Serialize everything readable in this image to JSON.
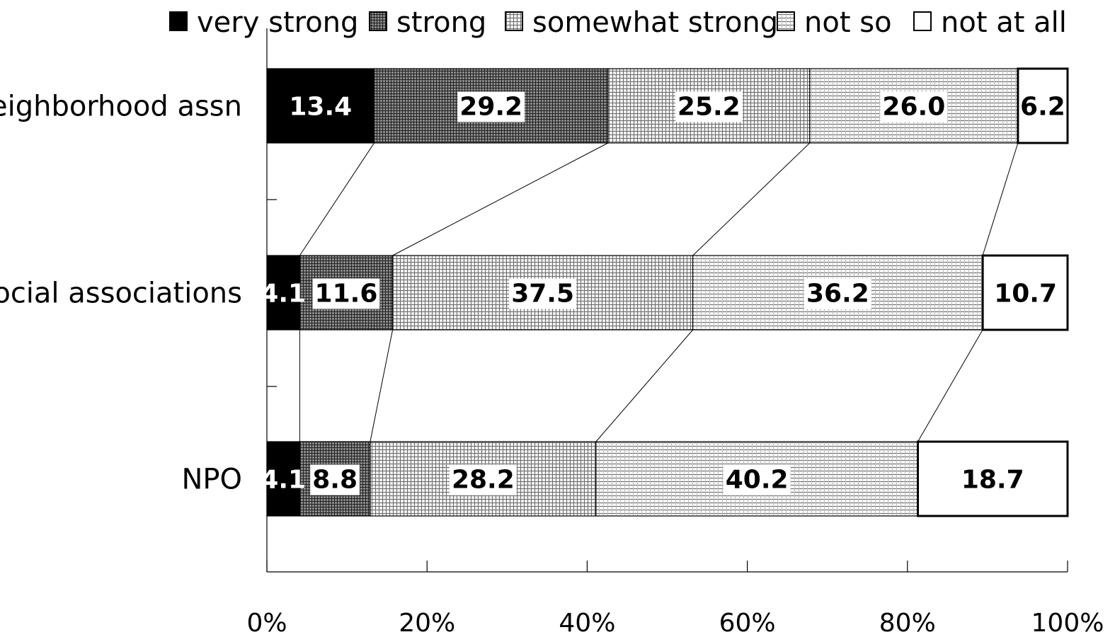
{
  "chart_data": {
    "type": "bar",
    "orientation": "horizontal",
    "stacked": "percent",
    "categories": [
      "neighborhood assn",
      "social associations",
      "NPO"
    ],
    "series": [
      {
        "name": "very strong",
        "values": [
          13.4,
          4.1,
          4.1
        ],
        "color": "#000000",
        "pattern": "solid"
      },
      {
        "name": "strong",
        "values": [
          29.2,
          11.6,
          8.8
        ],
        "color": "#444444",
        "pattern": "dense-grid"
      },
      {
        "name": "somewhat strong",
        "values": [
          25.2,
          37.5,
          28.2
        ],
        "color": "#bbbbbb",
        "pattern": "grid"
      },
      {
        "name": "not so",
        "values": [
          26.0,
          36.2,
          40.2
        ],
        "color": "#dddddd",
        "pattern": "horizontal-lines"
      },
      {
        "name": "not at all",
        "values": [
          6.2,
          10.7,
          18.7
        ],
        "color": "#ffffff",
        "pattern": "none"
      }
    ],
    "data_labels": [
      [
        "13.4",
        "29.2",
        "25.2",
        "26.0",
        "6.2"
      ],
      [
        "4.1",
        "11.6",
        "37.5",
        "36.2",
        "10.7"
      ],
      [
        "4.1",
        "8.8",
        "28.2",
        "40.2",
        "18.7"
      ]
    ],
    "x_ticks": [
      "0%",
      "20%",
      "40%",
      "60%",
      "80%",
      "100%"
    ],
    "xlim": [
      0,
      100
    ],
    "legend_position": "top",
    "series_lines": true,
    "grid": false
  }
}
